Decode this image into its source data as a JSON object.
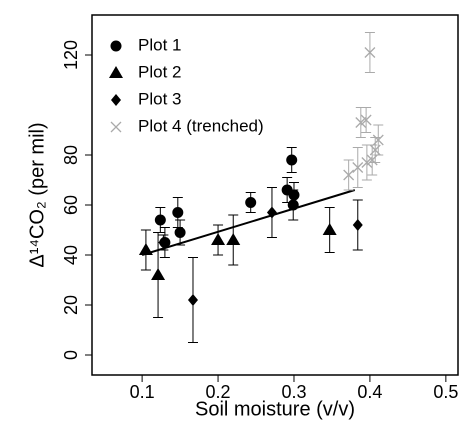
{
  "chart_data": {
    "type": "scatter",
    "xlabel": "Soil moisture (v/v)",
    "ylabel": "Δ¹⁴CO₂ (per mil)",
    "xlim": [
      0.034,
      0.516
    ],
    "xticks": [
      0.1,
      0.2,
      0.3,
      0.4,
      0.5
    ],
    "ylim": [
      -8,
      136
    ],
    "yticks": [
      0,
      20,
      40,
      60,
      80,
      120
    ],
    "legend": "upper left",
    "series": [
      {
        "name": "Plot 1",
        "color": "#000000",
        "marker": "circle",
        "x": [
          0.124,
          0.13,
          0.147,
          0.15,
          0.243,
          0.291,
          0.297,
          0.299,
          0.3
        ],
        "values": [
          54,
          45,
          57,
          49,
          61,
          66,
          78,
          60,
          64
        ],
        "errors": [
          5,
          6,
          6,
          5,
          4,
          5,
          5,
          6,
          5
        ]
      },
      {
        "name": "Plot 2",
        "color": "#000000",
        "marker": "triangle",
        "x": [
          0.105,
          0.121,
          0.2,
          0.22,
          0.347
        ],
        "values": [
          42,
          32,
          46,
          46,
          50
        ],
        "errors": [
          8,
          17,
          6,
          10,
          9
        ]
      },
      {
        "name": "Plot 3",
        "color": "#000000",
        "marker": "diamond",
        "x": [
          0.128,
          0.167,
          0.271,
          0.384
        ],
        "values": [
          45,
          22,
          57,
          52
        ],
        "errors": [
          3,
          17,
          10,
          10
        ]
      },
      {
        "name": "Plot 4 (trenched)",
        "color": "#aaaaaa",
        "marker": "x",
        "x": [
          0.372,
          0.384,
          0.388,
          0.395,
          0.396,
          0.4,
          0.403,
          0.407,
          0.411
        ],
        "values": [
          72,
          75,
          93,
          94,
          77,
          121,
          78,
          82,
          86
        ],
        "errors": [
          6,
          8,
          6,
          5,
          7,
          8,
          6,
          5,
          6
        ]
      }
    ],
    "fit": {
      "color": "#000000",
      "x": [
        0.1,
        0.38
      ],
      "values": [
        40,
        66
      ]
    }
  }
}
